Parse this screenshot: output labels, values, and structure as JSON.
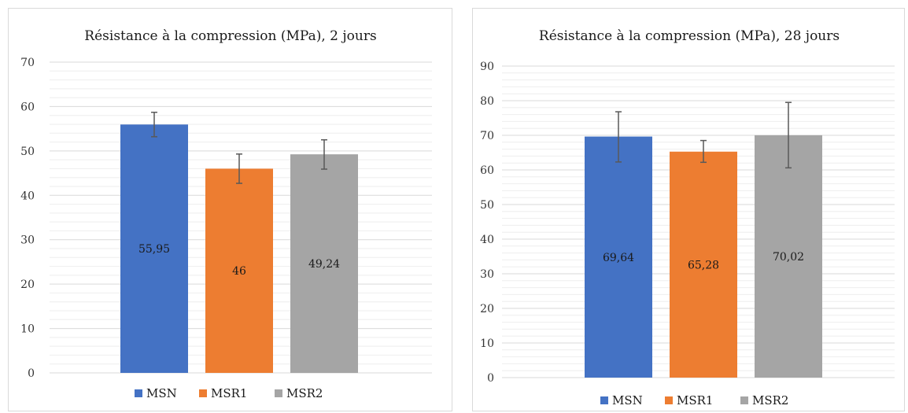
{
  "chart_data": [
    {
      "type": "bar",
      "title": "Résistance à la compression (MPa), 2 jours",
      "categories": [
        "MSN",
        "MSR1",
        "MSR2"
      ],
      "values": [
        55.95,
        46,
        49.24
      ],
      "data_labels": [
        "55,95",
        "46",
        "49,24"
      ],
      "error_low": [
        53.2,
        42.7,
        45.9
      ],
      "error_high": [
        58.7,
        49.3,
        52.5
      ],
      "ylim": [
        0,
        70
      ],
      "yticks": [
        0,
        10,
        20,
        30,
        40,
        50,
        60,
        70
      ],
      "ytick_labels": [
        "0",
        "10",
        "20",
        "30",
        "40",
        "50",
        "60",
        "70"
      ],
      "minor_step": 2,
      "grid": true,
      "legend": [
        "MSN",
        "MSR1",
        "MSR2"
      ],
      "legend_placement": "bottom",
      "xlabel": "",
      "ylabel": ""
    },
    {
      "type": "bar",
      "title": "Résistance à la compression (MPa), 28 jours",
      "categories": [
        "MSN",
        "MSR1",
        "MSR2"
      ],
      "values": [
        69.64,
        65.28,
        70.02
      ],
      "data_labels": [
        "69,64",
        "65,28",
        "70,02"
      ],
      "error_low": [
        62.3,
        62.2,
        60.6
      ],
      "error_high": [
        76.8,
        68.5,
        79.5
      ],
      "ylim": [
        0,
        90
      ],
      "yticks": [
        0,
        10,
        20,
        30,
        40,
        50,
        60,
        70,
        80,
        90
      ],
      "ytick_labels": [
        "0",
        "10",
        "20",
        "30",
        "40",
        "50",
        "60",
        "70",
        "80",
        "90"
      ],
      "minor_step": 2,
      "grid": true,
      "legend": [
        "MSN",
        "MSR1",
        "MSR2"
      ],
      "legend_placement": "bottom",
      "xlabel": "",
      "ylabel": ""
    }
  ],
  "colors": {
    "MSN": "#4472c4",
    "MSR1": "#ed7d31",
    "MSR2": "#a5a5a5",
    "grid_major": "#d9d9d9",
    "grid_minor": "#eeeeee",
    "error_bar": "#595959"
  }
}
